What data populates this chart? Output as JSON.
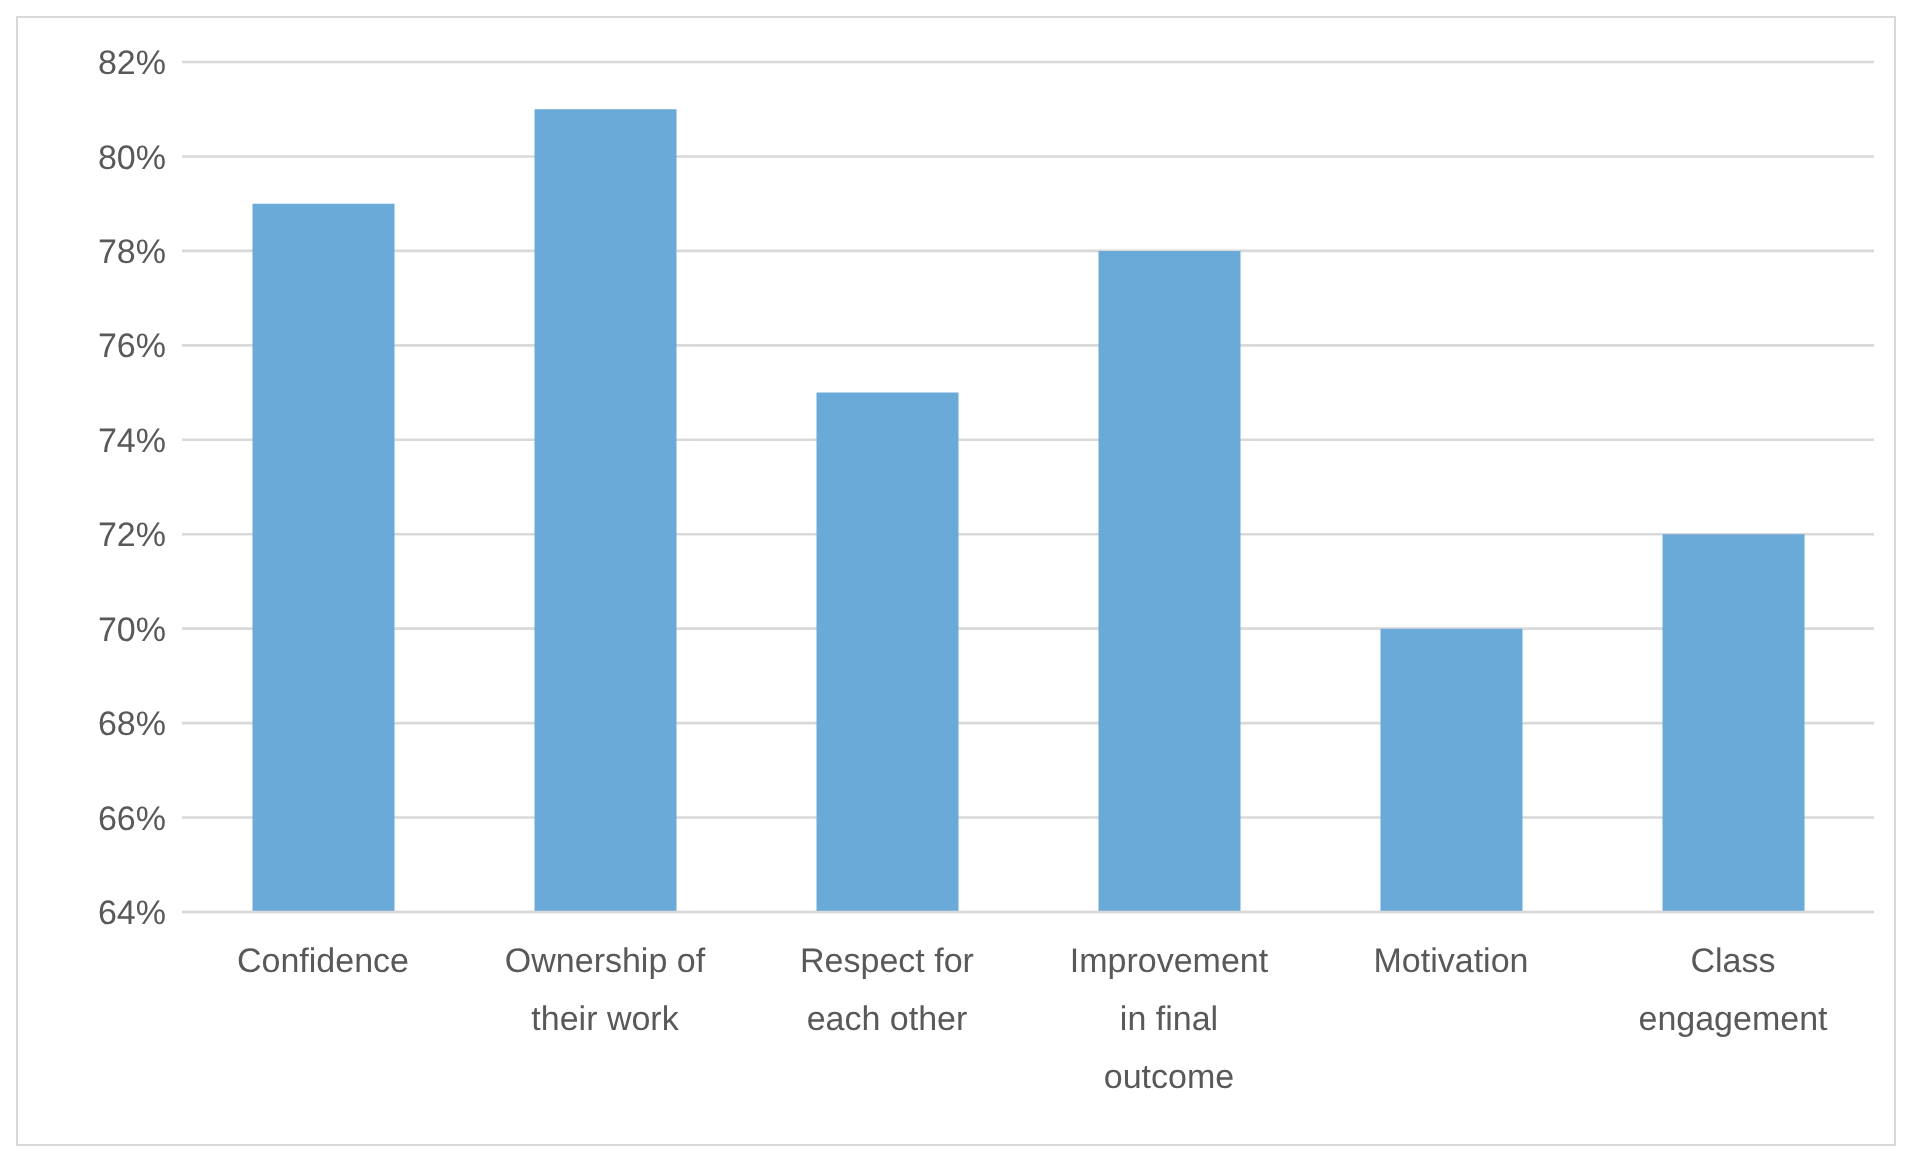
{
  "chart_data": {
    "type": "bar",
    "categories": [
      "Confidence",
      "Ownership of their work",
      "Respect for each other",
      "Improvement in final outcome",
      "Motivation",
      "Class engagement"
    ],
    "values": [
      79,
      81,
      75,
      78,
      70,
      72
    ],
    "color": "#6aaad9",
    "ylim": [
      64,
      82
    ],
    "yticks": [
      {
        "value": 64,
        "label": "64%"
      },
      {
        "value": 66,
        "label": "66%"
      },
      {
        "value": 68,
        "label": "68%"
      },
      {
        "value": 70,
        "label": "70%"
      },
      {
        "value": 72,
        "label": "72%"
      },
      {
        "value": 74,
        "label": "74%"
      },
      {
        "value": 76,
        "label": "76%"
      },
      {
        "value": 78,
        "label": "78%"
      },
      {
        "value": 80,
        "label": "80%"
      },
      {
        "value": 82,
        "label": "82%"
      }
    ],
    "grid": "y"
  }
}
